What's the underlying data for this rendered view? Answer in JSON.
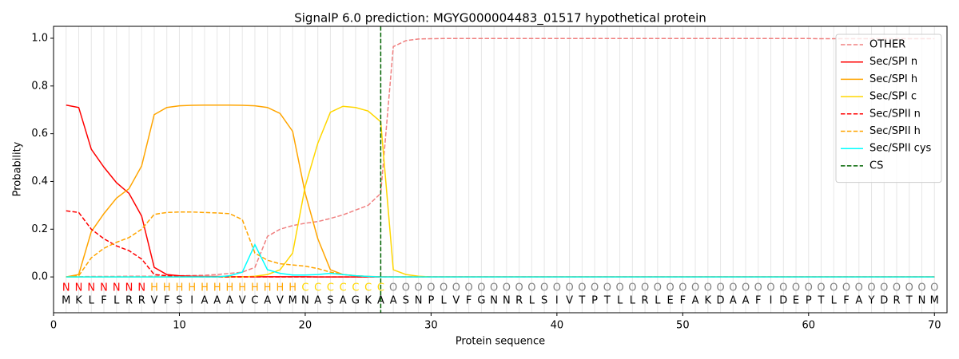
{
  "chart_data": {
    "type": "line",
    "title": "SignalP 6.0 prediction: MGYG000004483_01517 hypothetical protein",
    "xlabel": "Protein sequence",
    "ylabel": "Probability",
    "xlim": [
      0,
      71
    ],
    "ylim": [
      -0.15,
      1.05
    ],
    "xticks": [
      0,
      10,
      20,
      30,
      40,
      50,
      60,
      70
    ],
    "yticks": [
      {
        "value": 0,
        "label": "0.0"
      },
      0.2,
      0.4,
      0.6,
      0.8,
      {
        "value": 1,
        "label": "1.0"
      }
    ],
    "grid": "x",
    "legend": "upper right",
    "x": [
      1,
      2,
      3,
      4,
      5,
      6,
      7,
      8,
      9,
      10,
      11,
      12,
      13,
      14,
      15,
      16,
      17,
      18,
      19,
      20,
      21,
      22,
      23,
      24,
      25,
      26,
      27,
      28,
      29,
      30,
      31,
      32,
      33,
      34,
      35,
      36,
      37,
      38,
      39,
      40,
      41,
      42,
      43,
      44,
      45,
      46,
      47,
      48,
      49,
      50,
      51,
      52,
      53,
      54,
      55,
      56,
      57,
      58,
      59,
      60,
      61,
      62,
      63,
      64,
      65,
      66,
      67,
      68,
      69,
      70
    ],
    "sequence": [
      "M",
      "K",
      "L",
      "F",
      "L",
      "R",
      "R",
      "V",
      "F",
      "S",
      "I",
      "A",
      "A",
      "A",
      "V",
      "C",
      "A",
      "V",
      "M",
      "N",
      "A",
      "S",
      "A",
      "G",
      "K",
      "A",
      "A",
      "S",
      "N",
      "P",
      "L",
      "V",
      "F",
      "G",
      "N",
      "N",
      "R",
      "L",
      "S",
      "I",
      "V",
      "T",
      "P",
      "T",
      "L",
      "L",
      "R",
      "L",
      "E",
      "F",
      "A",
      "K",
      "D",
      "A",
      "A",
      "F",
      "I",
      "D",
      "E",
      "P",
      "T",
      "L",
      "F",
      "A",
      "Y",
      "D",
      "R",
      "T",
      "N",
      "M"
    ],
    "regions": [
      "N",
      "N",
      "N",
      "N",
      "N",
      "N",
      "N",
      "H",
      "H",
      "H",
      "H",
      "H",
      "H",
      "H",
      "H",
      "H",
      "H",
      "H",
      "H",
      "C",
      "C",
      "C",
      "C",
      "C",
      "C",
      "C",
      "O",
      "O",
      "O",
      "O",
      "O",
      "O",
      "O",
      "O",
      "O",
      "O",
      "O",
      "O",
      "O",
      "O",
      "O",
      "O",
      "O",
      "O",
      "O",
      "O",
      "O",
      "O",
      "O",
      "O",
      "O",
      "O",
      "O",
      "O",
      "O",
      "O",
      "O",
      "O",
      "O",
      "O",
      "O",
      "O",
      "O",
      "O",
      "O",
      "O",
      "O",
      "O",
      "O",
      "O"
    ],
    "region_colors": {
      "N": "red",
      "H": "orange",
      "C": "gold",
      "O": "grey"
    },
    "series": [
      {
        "name": "OTHER",
        "color": "lightcoral",
        "dash": true,
        "values": [
          0.001,
          0.001,
          0.002,
          0.002,
          0.002,
          0.003,
          0.003,
          0.003,
          0.004,
          0.005,
          0.006,
          0.007,
          0.01,
          0.015,
          0.02,
          0.04,
          0.17,
          0.2,
          0.215,
          0.225,
          0.232,
          0.245,
          0.26,
          0.28,
          0.3,
          0.35,
          0.965,
          0.99,
          0.997,
          0.998,
          0.999,
          0.999,
          0.999,
          0.999,
          0.999,
          0.999,
          0.999,
          0.999,
          0.999,
          0.999,
          0.999,
          0.999,
          0.999,
          0.999,
          0.999,
          0.999,
          0.999,
          0.999,
          0.999,
          0.999,
          0.999,
          0.999,
          0.999,
          0.999,
          0.999,
          0.999,
          0.999,
          0.999,
          0.999,
          0.999,
          0.998,
          0.998,
          0.998,
          0.998,
          0.998,
          0.998,
          0.998,
          0.998,
          0.998,
          0.998
        ]
      },
      {
        "name": "Sec/SPI n",
        "color": "red",
        "dash": false,
        "values": [
          0.72,
          0.71,
          0.535,
          0.46,
          0.395,
          0.35,
          0.255,
          0.04,
          0.01,
          0.005,
          0.003,
          0.002,
          0.002,
          0.001,
          0.001,
          0.001,
          0.001,
          0.001,
          0.001,
          0.001,
          0,
          0,
          0,
          0,
          0,
          0,
          0,
          0,
          0,
          0,
          0,
          0,
          0,
          0,
          0,
          0,
          0,
          0,
          0,
          0,
          0,
          0,
          0,
          0,
          0,
          0,
          0,
          0,
          0,
          0,
          0,
          0,
          0,
          0,
          0,
          0,
          0,
          0,
          0,
          0,
          0,
          0,
          0,
          0,
          0,
          0,
          0,
          0,
          0,
          0
        ]
      },
      {
        "name": "Sec/SPI h",
        "color": "orange",
        "dash": false,
        "values": [
          0,
          0.01,
          0.19,
          0.265,
          0.33,
          0.37,
          0.465,
          0.68,
          0.71,
          0.717,
          0.719,
          0.72,
          0.72,
          0.72,
          0.719,
          0.717,
          0.71,
          0.685,
          0.61,
          0.35,
          0.16,
          0.03,
          0.01,
          0.005,
          0.002,
          0.001,
          0,
          0,
          0,
          0,
          0,
          0,
          0,
          0,
          0,
          0,
          0,
          0,
          0,
          0,
          0,
          0,
          0,
          0,
          0,
          0,
          0,
          0,
          0,
          0,
          0,
          0,
          0,
          0,
          0,
          0,
          0,
          0,
          0,
          0,
          0,
          0,
          0,
          0,
          0,
          0,
          0,
          0,
          0,
          0
        ]
      },
      {
        "name": "Sec/SPI c",
        "color": "gold",
        "dash": false,
        "values": [
          0,
          0,
          0,
          0,
          0,
          0,
          0,
          0,
          0,
          0,
          0,
          0,
          0,
          0,
          0,
          0.003,
          0.01,
          0.03,
          0.1,
          0.38,
          0.56,
          0.69,
          0.715,
          0.71,
          0.695,
          0.65,
          0.03,
          0.01,
          0.003,
          0,
          0,
          0,
          0,
          0,
          0,
          0,
          0,
          0,
          0,
          0,
          0,
          0,
          0,
          0,
          0,
          0,
          0,
          0,
          0,
          0,
          0,
          0,
          0,
          0,
          0,
          0,
          0,
          0,
          0,
          0,
          0,
          0,
          0,
          0,
          0,
          0,
          0,
          0,
          0,
          0
        ]
      },
      {
        "name": "Sec/SPII n",
        "color": "red",
        "dash": true,
        "values": [
          0.277,
          0.27,
          0.2,
          0.16,
          0.13,
          0.11,
          0.075,
          0.01,
          0.005,
          0.003,
          0.002,
          0,
          0,
          0,
          0,
          0,
          0,
          0,
          0,
          0,
          0,
          0,
          0,
          0,
          0,
          0,
          0,
          0,
          0,
          0,
          0,
          0,
          0,
          0,
          0,
          0,
          0,
          0,
          0,
          0,
          0,
          0,
          0,
          0,
          0,
          0,
          0,
          0,
          0,
          0,
          0,
          0,
          0,
          0,
          0,
          0,
          0,
          0,
          0,
          0,
          0,
          0,
          0,
          0,
          0,
          0,
          0,
          0,
          0,
          0
        ]
      },
      {
        "name": "Sec/SPII h",
        "color": "orange",
        "dash": true,
        "values": [
          0,
          0.005,
          0.08,
          0.12,
          0.145,
          0.165,
          0.2,
          0.262,
          0.27,
          0.272,
          0.272,
          0.27,
          0.268,
          0.265,
          0.24,
          0.1,
          0.07,
          0.055,
          0.05,
          0.045,
          0.035,
          0.02,
          0.01,
          0.005,
          0.002,
          0,
          0,
          0,
          0,
          0,
          0,
          0,
          0,
          0,
          0,
          0,
          0,
          0,
          0,
          0,
          0,
          0,
          0,
          0,
          0,
          0,
          0,
          0,
          0,
          0,
          0,
          0,
          0,
          0,
          0,
          0,
          0,
          0,
          0,
          0,
          0,
          0,
          0,
          0,
          0,
          0,
          0,
          0,
          0,
          0
        ]
      },
      {
        "name": "Sec/SPII cys",
        "color": "cyan",
        "dash": false,
        "values": [
          0,
          0,
          0,
          0,
          0,
          0,
          0,
          0,
          0,
          0,
          0,
          0,
          0,
          0.005,
          0.02,
          0.135,
          0.03,
          0.015,
          0.008,
          0.008,
          0.01,
          0.015,
          0.01,
          0.005,
          0.002,
          0,
          0,
          0,
          0,
          0,
          0,
          0,
          0,
          0,
          0,
          0,
          0,
          0,
          0,
          0,
          0,
          0,
          0,
          0,
          0,
          0,
          0,
          0,
          0,
          0,
          0,
          0,
          0,
          0,
          0,
          0,
          0,
          0,
          0,
          0,
          0,
          0,
          0,
          0,
          0,
          0,
          0,
          0,
          0,
          0
        ]
      }
    ],
    "cs": {
      "name": "CS",
      "x": 26,
      "color": "darkgreen"
    }
  }
}
